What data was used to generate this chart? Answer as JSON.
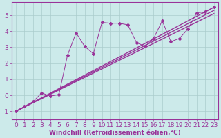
{
  "background_color": "#cceaea",
  "grid_color": "#aacccc",
  "line_color": "#993399",
  "xlabel": "Windchill (Refroidissement éolien,°C)",
  "xlim": [
    -0.5,
    23.5
  ],
  "ylim": [
    -1.5,
    5.8
  ],
  "yticks": [
    -1,
    0,
    1,
    2,
    3,
    4,
    5
  ],
  "xticks": [
    0,
    1,
    2,
    3,
    4,
    5,
    6,
    7,
    8,
    9,
    10,
    11,
    12,
    13,
    14,
    15,
    16,
    17,
    18,
    19,
    20,
    21,
    22,
    23
  ],
  "line1_x": [
    0,
    23
  ],
  "line1_y": [
    -1.0,
    5.5
  ],
  "line2_x": [
    0,
    23
  ],
  "line2_y": [
    -1.0,
    5.3
  ],
  "line3_x": [
    0,
    23
  ],
  "line3_y": [
    -1.0,
    5.1
  ],
  "scatter_x": [
    0,
    1,
    2,
    3,
    4,
    5,
    6,
    7,
    8,
    9,
    10,
    11,
    12,
    13,
    14,
    15,
    16,
    17,
    18,
    19,
    20,
    21,
    22,
    23
  ],
  "scatter_y": [
    -1.0,
    -0.7,
    -0.4,
    0.15,
    -0.05,
    0.05,
    2.5,
    3.9,
    3.05,
    2.6,
    4.55,
    4.5,
    4.5,
    4.4,
    3.3,
    3.05,
    3.55,
    4.65,
    3.35,
    3.55,
    4.15,
    5.15,
    5.2,
    5.5
  ],
  "axis_color": "#993399",
  "font_size": 6.5
}
